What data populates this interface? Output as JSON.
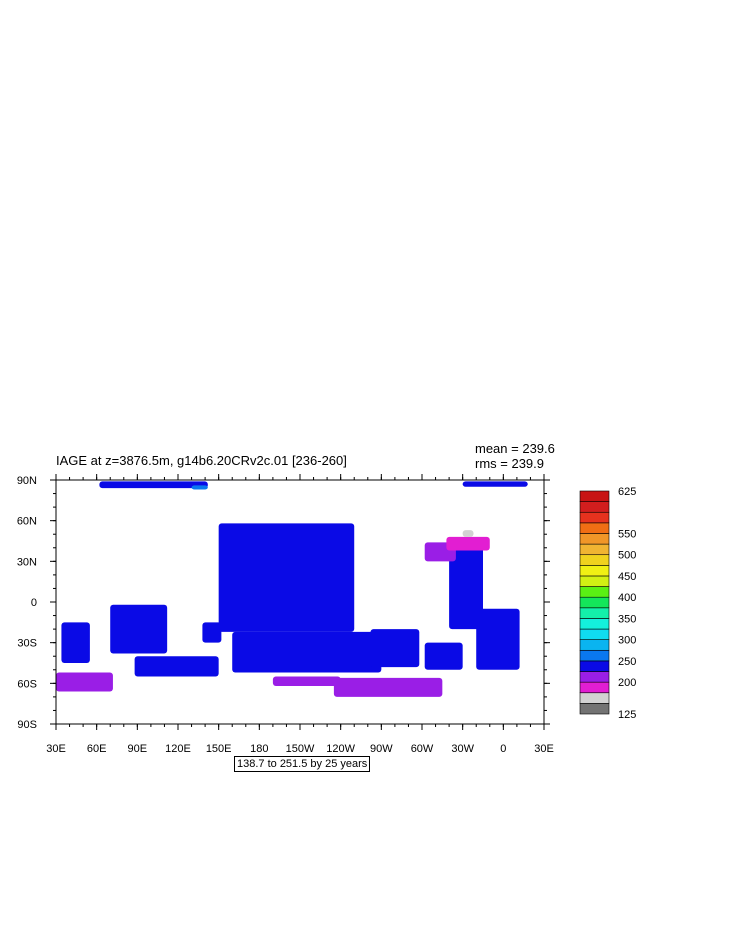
{
  "header": {
    "title": "IAGE at z=3876.5m, g14b6.20CRv2c.01 [236-260]",
    "mean": "mean = 239.6",
    "rms": "rms = 239.9"
  },
  "footer": {
    "range_text": "138.7 to 251.5 by 25 years"
  },
  "chart_data": {
    "type": "heatmap",
    "title": "IAGE at z=3876.5m, g14b6.20CRv2c.01 [236-260]",
    "stats": {
      "mean": 239.6,
      "rms": 239.9
    },
    "x_tick_labels": [
      "30E",
      "60E",
      "90E",
      "120E",
      "150E",
      "180",
      "150W",
      "120W",
      "90W",
      "60W",
      "30W",
      "0",
      "30E"
    ],
    "y_tick_labels": [
      "90N",
      "60N",
      "30N",
      "0",
      "30S",
      "60S",
      "90S"
    ],
    "x_range_deg_east": [
      30,
      390
    ],
    "y_range_deg_north": [
      -90,
      90
    ],
    "colorbar": {
      "labels": [
        "625",
        "550",
        "500",
        "450",
        "400",
        "350",
        "300",
        "250",
        "200",
        "125"
      ],
      "levels": [
        125,
        150,
        175,
        200,
        225,
        250,
        275,
        300,
        325,
        350,
        375,
        400,
        425,
        450,
        475,
        500,
        525,
        550,
        575,
        600,
        625
      ],
      "colors": [
        "#737373",
        "#d2d2d2",
        "#e21ed2",
        "#9a1ee6",
        "#0a0ae6",
        "#0a78f0",
        "#0ab4f0",
        "#10dcf0",
        "#14f0dc",
        "#14f0aa",
        "#14e65a",
        "#5af014",
        "#d2f014",
        "#f0f014",
        "#f0d21e",
        "#f0b432",
        "#f09628",
        "#f06e14",
        "#e6321e",
        "#d21e1e",
        "#c81414"
      ]
    },
    "range_text": "138.7 to 251.5 by 25 years",
    "regions": [
      {
        "name": "arctic-strip-west",
        "lon": [
          62,
          142
        ],
        "lat": [
          84,
          89
        ],
        "value": 240
      },
      {
        "name": "arctic-strip-east",
        "lon": [
          330,
          378
        ],
        "lat": [
          85,
          89
        ],
        "value": 240
      },
      {
        "name": "arctic-light",
        "lon": [
          130,
          142
        ],
        "lat": [
          83,
          86
        ],
        "value": 270
      },
      {
        "name": "north-pacific",
        "lon": [
          150,
          250
        ],
        "lat": [
          -22,
          58
        ],
        "value": 240
      },
      {
        "name": "south-pacific",
        "lon": [
          160,
          270
        ],
        "lat": [
          -52,
          -22
        ],
        "value": 235
      },
      {
        "name": "east-pacific-patch",
        "lon": [
          262,
          298
        ],
        "lat": [
          -48,
          -20
        ],
        "value": 238
      },
      {
        "name": "indian-west",
        "lon": [
          70,
          112
        ],
        "lat": [
          -38,
          -2
        ],
        "value": 238
      },
      {
        "name": "indian-south",
        "lon": [
          88,
          150
        ],
        "lat": [
          -55,
          -40
        ],
        "value": 238
      },
      {
        "name": "indian-mid",
        "lon": [
          138,
          152
        ],
        "lat": [
          -30,
          -15
        ],
        "value": 240
      },
      {
        "name": "north-atlantic",
        "lon": [
          320,
          345
        ],
        "lat": [
          -20,
          45
        ],
        "value": 236
      },
      {
        "name": "south-atlantic",
        "lon": [
          340,
          372
        ],
        "lat": [
          -50,
          -5
        ],
        "value": 238
      },
      {
        "name": "atlantic-southwest",
        "lon": [
          302,
          330
        ],
        "lat": [
          -50,
          -30
        ],
        "value": 238
      },
      {
        "name": "east-indian",
        "lon": [
          34,
          55
        ],
        "lat": [
          -45,
          -15
        ],
        "value": 240
      },
      {
        "name": "southern-ocean-pacific",
        "lon": [
          235,
          315
        ],
        "lat": [
          -70,
          -56
        ],
        "value": 205
      },
      {
        "name": "southern-ocean-ross",
        "lon": [
          190,
          240
        ],
        "lat": [
          -62,
          -55
        ],
        "value": 210
      },
      {
        "name": "southern-ocean-indian-west",
        "lon": [
          30,
          72
        ],
        "lat": [
          -66,
          -52
        ],
        "value": 210
      },
      {
        "name": "north-atlantic-purple",
        "lon": [
          302,
          325
        ],
        "lat": [
          30,
          44
        ],
        "value": 210
      },
      {
        "name": "labrador-magenta",
        "lon": [
          318,
          350
        ],
        "lat": [
          38,
          48
        ],
        "value": 188
      },
      {
        "name": "greenland-grey",
        "lon": [
          330,
          338
        ],
        "lat": [
          48,
          53
        ],
        "value": 150
      }
    ]
  }
}
